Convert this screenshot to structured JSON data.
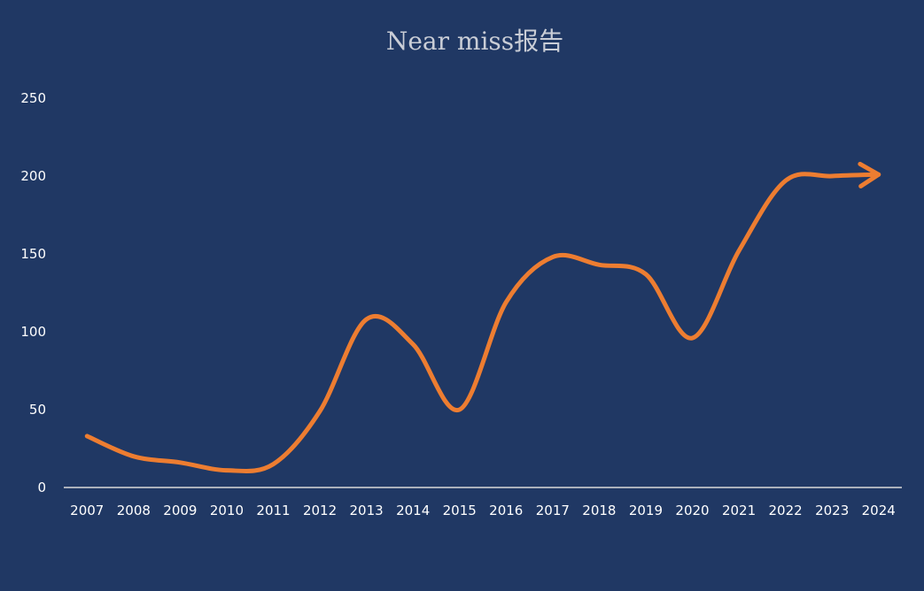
{
  "chart_data": {
    "type": "line",
    "title": "Near miss报告",
    "xlabel": "",
    "ylabel": "",
    "x": [
      "2007",
      "2008",
      "2009",
      "2010",
      "2011",
      "2012",
      "2013",
      "2014",
      "2015",
      "2016",
      "2017",
      "2018",
      "2019",
      "2020",
      "2021",
      "2022",
      "2023",
      "2024"
    ],
    "series": [
      {
        "values": [
          33,
          20,
          16,
          11,
          15,
          49,
          108,
          92,
          50,
          119,
          148,
          143,
          137,
          96,
          152,
          197,
          200,
          201
        ]
      }
    ],
    "ylim": [
      0,
      250
    ],
    "yticks": [
      0,
      50,
      100,
      150,
      200,
      250
    ],
    "grid": false,
    "legend": "none",
    "smooth": true,
    "end_marker": "arrow",
    "colors": {
      "background": "#203864",
      "line": "#ed7d31",
      "axis": "#d9d9d9",
      "text": "#ffffff",
      "title": "#c9cdd6"
    }
  }
}
